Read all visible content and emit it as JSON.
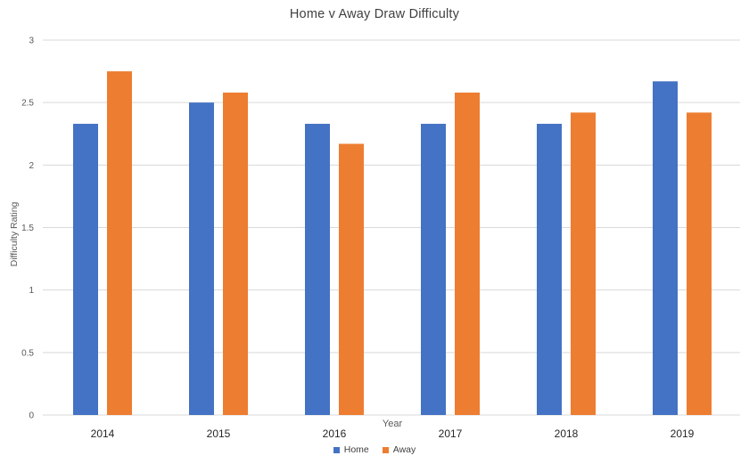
{
  "chart_data": {
    "type": "bar",
    "title": "Home v Away Draw Difficulty",
    "xlabel": "Year",
    "ylabel": "Difficulty Rating",
    "categories": [
      "2014",
      "2015",
      "2016",
      "2017",
      "2018",
      "2019"
    ],
    "series": [
      {
        "name": "Home",
        "color": "#4472C4",
        "values": [
          2.33,
          2.5,
          2.33,
          2.33,
          2.33,
          2.67
        ]
      },
      {
        "name": "Away",
        "color": "#ED7D31",
        "values": [
          2.75,
          2.58,
          2.17,
          2.58,
          2.42,
          2.42
        ]
      }
    ],
    "ylim": [
      0,
      3
    ],
    "ytick_step": 0.5,
    "yticks": [
      "0",
      "0.5",
      "1",
      "1.5",
      "2",
      "2.5",
      "3"
    ],
    "grid": true,
    "legend_position": "bottom",
    "colors": {
      "grid": "#D9D9D9",
      "axis_line": "#D9D9D9",
      "tick_label": "#595959",
      "category_label": "#262626",
      "title": "#404040",
      "axis_title": "#595959",
      "legend_label": "#404040",
      "background": "#FFFFFF"
    }
  }
}
